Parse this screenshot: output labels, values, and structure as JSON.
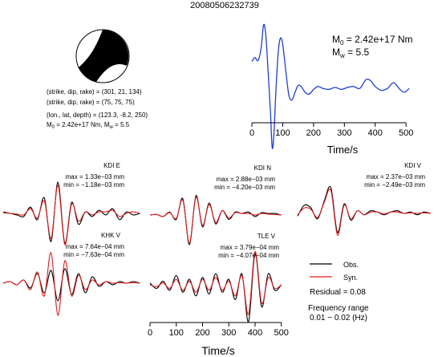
{
  "event_id": "20080506232739",
  "focal_mechanism": {
    "plane1_line": "(strike, dip, rake) = (301, 21, 134)",
    "plane2_line": "(strike, dip, rake) = (75, 75, 75)",
    "location_line": "(lon., lat, depth) = (123.3, -8.2, 250)",
    "moment_prefix": "M",
    "moment_sub": "0",
    "moment_value": " = 2.42e+17 Nm, M",
    "mw_sub": "w",
    "mw_value": " = 5.5"
  },
  "stf_panel": {
    "m0_main": "M",
    "m0_sub": "0",
    "m0_value": " = 2.42e+17 Nm",
    "mw_main": "M",
    "mw_sub": "w",
    "mw_value": " = 5.5",
    "xlabel": "Time/s",
    "xticks": [
      0,
      100,
      200,
      300,
      400,
      500
    ]
  },
  "bottom_axis": {
    "xlabel": "Time/s",
    "xticks": [
      0,
      100,
      200,
      300,
      400,
      500
    ]
  },
  "traces": [
    {
      "station": "KDI E",
      "max": "max = 1.33e−03 mm",
      "min": "min = −1.18e−03 mm"
    },
    {
      "station": "KDI N",
      "max": "max = 2.88e−03 mm",
      "min": "min = −4.20e−03 mm"
    },
    {
      "station": "KDI V",
      "max": "max = 2.37e−03 mm",
      "min": "min = −2.49e−03 mm"
    },
    {
      "station": "KHK V",
      "max": "max = 7.64e−04 mm",
      "min": "min = −7.63e−04 mm"
    },
    {
      "station": "TLE V",
      "max": "max = 3.79e−04 mm",
      "min": "min = −4.07e−04 mm"
    }
  ],
  "legend": {
    "obs_label": "Obs.",
    "syn_label": "Syn.",
    "residual": "Residual = 0.08",
    "freq_title": "Frequency range",
    "freq_value": "0.01 − 0.02 (Hz)"
  },
  "colors": {
    "observed": "#000000",
    "synthetic": "#e41a1c",
    "source_time_function": "#1f3fd6"
  },
  "chart_data": [
    {
      "type": "line",
      "panel": "source time function",
      "xlim": [
        0,
        510
      ],
      "x": [
        0,
        10,
        20,
        30,
        38,
        45,
        52,
        60,
        66,
        72,
        78,
        85,
        92,
        100,
        110,
        120,
        130,
        140,
        150,
        160,
        170,
        180,
        190,
        200,
        215,
        230,
        250,
        270,
        290,
        310,
        330,
        350,
        370,
        385,
        400,
        420,
        440,
        460,
        480,
        495,
        510
      ],
      "series": [
        {
          "values": [
            0.62,
            0.66,
            0.63,
            0.76,
            1.0,
            0.9,
            0.55,
            0.1,
            -0.28,
            -0.1,
            0.32,
            0.7,
            0.86,
            0.8,
            0.52,
            0.27,
            0.22,
            0.3,
            0.37,
            0.36,
            0.31,
            0.28,
            0.29,
            0.33,
            0.36,
            0.34,
            0.33,
            0.35,
            0.33,
            0.35,
            0.36,
            0.34,
            0.43,
            0.42,
            0.36,
            0.32,
            0.34,
            0.4,
            0.33,
            0.3,
            0.34
          ]
        }
      ]
    },
    {
      "type": "line",
      "panel": "KDI E",
      "xlim": [
        0,
        510
      ],
      "x": [
        0,
        25,
        50,
        75,
        100,
        125,
        150,
        175,
        200,
        225,
        250,
        275,
        300,
        325,
        350,
        375,
        400,
        425,
        450,
        475,
        500
      ],
      "series": [
        {
          "name": "Obs.",
          "values": [
            0.05,
            0.0,
            -0.05,
            -0.1,
            0.2,
            -0.2,
            0.5,
            -0.9,
            1.0,
            -0.95,
            0.35,
            -0.35,
            0.05,
            -0.1,
            0.1,
            -0.05,
            0.15,
            -0.2,
            0.05,
            -0.05,
            0.0
          ]
        },
        {
          "name": "Syn.",
          "values": [
            0.02,
            0.0,
            -0.02,
            -0.05,
            0.15,
            -0.15,
            0.4,
            -0.8,
            0.9,
            -1.0,
            0.3,
            -0.25,
            0.05,
            -0.05,
            0.05,
            0.05,
            0.1,
            -0.1,
            0.0,
            0.05,
            0.0
          ]
        }
      ]
    },
    {
      "type": "line",
      "panel": "KDI N",
      "xlim": [
        0,
        510
      ],
      "x": [
        0,
        25,
        50,
        75,
        100,
        125,
        150,
        175,
        200,
        225,
        250,
        275,
        300,
        325,
        350,
        375,
        400,
        425,
        450,
        475,
        500
      ],
      "series": [
        {
          "name": "Obs.",
          "values": [
            0.0,
            0.02,
            -0.05,
            0.1,
            -0.15,
            0.55,
            -1.0,
            0.65,
            -0.4,
            0.4,
            -0.3,
            0.15,
            -0.15,
            0.1,
            0.05,
            0.1,
            -0.05,
            0.08,
            0.05,
            0.05,
            0.0
          ]
        },
        {
          "name": "Syn.",
          "values": [
            0.0,
            0.02,
            -0.05,
            0.08,
            -0.12,
            0.5,
            -0.95,
            0.6,
            -0.35,
            0.35,
            -0.25,
            0.15,
            -0.1,
            0.08,
            0.05,
            0.05,
            0.0,
            0.05,
            0.03,
            0.02,
            0.0
          ]
        }
      ]
    },
    {
      "type": "line",
      "panel": "KDI V",
      "xlim": [
        0,
        510
      ],
      "x": [
        0,
        25,
        50,
        75,
        100,
        125,
        150,
        175,
        200,
        225,
        250,
        275,
        300,
        325,
        350,
        375,
        400,
        425,
        450,
        475,
        500
      ],
      "series": [
        {
          "name": "Obs.",
          "values": [
            -0.1,
            0.3,
            0.2,
            -0.2,
            0.45,
            0.95,
            -0.7,
            0.35,
            -0.25,
            0.1,
            -0.05,
            0.1,
            0.05,
            -0.05,
            0.05,
            0.1,
            0.0,
            0.05,
            -0.05,
            0.05,
            0.0
          ]
        },
        {
          "name": "Syn.",
          "values": [
            -0.05,
            0.2,
            0.15,
            -0.15,
            0.4,
            0.85,
            -0.8,
            0.3,
            -0.2,
            0.1,
            -0.05,
            0.05,
            0.05,
            -0.02,
            0.05,
            0.05,
            0.0,
            0.02,
            0.0,
            0.02,
            0.0
          ]
        }
      ]
    },
    {
      "type": "line",
      "panel": "KHK V",
      "xlim": [
        0,
        510
      ],
      "x": [
        0,
        25,
        50,
        75,
        100,
        125,
        150,
        175,
        200,
        225,
        250,
        275,
        300,
        325,
        350,
        375,
        400,
        425,
        450,
        475,
        500
      ],
      "series": [
        {
          "name": "Obs.",
          "values": [
            0.0,
            0.05,
            -0.05,
            0.1,
            -0.15,
            0.3,
            -0.3,
            0.4,
            -0.55,
            0.45,
            -0.35,
            0.3,
            -0.3,
            0.2,
            -0.1,
            0.05,
            -0.05,
            0.05,
            0.0,
            0.05,
            0.0
          ]
        },
        {
          "name": "Syn.",
          "values": [
            0.0,
            0.05,
            -0.05,
            0.1,
            -0.2,
            0.35,
            -0.4,
            0.95,
            -1.0,
            0.7,
            -0.4,
            0.25,
            -0.2,
            0.1,
            -0.05,
            0.05,
            0.0,
            0.02,
            0.0,
            0.02,
            0.0
          ]
        }
      ]
    },
    {
      "type": "line",
      "panel": "TLE V",
      "xlim": [
        0,
        510
      ],
      "x": [
        0,
        25,
        50,
        75,
        100,
        125,
        150,
        175,
        200,
        225,
        250,
        275,
        300,
        325,
        350,
        375,
        400,
        425,
        450,
        475,
        500
      ],
      "series": [
        {
          "name": "Obs.",
          "values": [
            0.05,
            -0.1,
            0.1,
            -0.15,
            0.25,
            -0.2,
            0.15,
            -0.3,
            0.2,
            -0.25,
            0.3,
            -0.2,
            0.15,
            -0.4,
            0.3,
            -1.0,
            0.85,
            -0.6,
            0.3,
            -0.15,
            0.0
          ]
        },
        {
          "name": "Syn.",
          "values": [
            0.0,
            -0.05,
            0.05,
            -0.1,
            0.15,
            -0.15,
            0.1,
            -0.2,
            0.15,
            -0.15,
            0.2,
            -0.15,
            0.1,
            -0.3,
            0.25,
            -0.8,
            0.9,
            -0.5,
            0.2,
            -0.1,
            0.0
          ]
        }
      ]
    }
  ]
}
